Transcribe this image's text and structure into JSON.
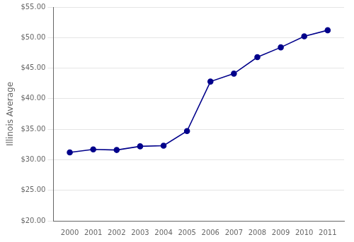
{
  "chart_data": {
    "type": "line",
    "x": [
      2000,
      2001,
      2002,
      2003,
      2004,
      2005,
      2006,
      2007,
      2008,
      2009,
      2010,
      2011
    ],
    "values": [
      31.2,
      31.7,
      31.6,
      32.2,
      32.3,
      34.7,
      42.8,
      44.1,
      46.8,
      48.4,
      50.2,
      51.2
    ],
    "color": "#00008B",
    "marker": "o",
    "ylabel": "Illinois Average",
    "xlim": [
      1999.3,
      2011.7
    ],
    "xticks": [
      2000,
      2001,
      2002,
      2003,
      2004,
      2005,
      2006,
      2007,
      2008,
      2009,
      2010,
      2011
    ],
    "ylim": [
      20.0,
      55.0
    ],
    "yticks": [
      {
        "value": 20.0,
        "label": "$20.00"
      },
      {
        "value": 25.0,
        "label": "$25.00"
      },
      {
        "value": 30.0,
        "label": "$30.00"
      },
      {
        "value": 35.0,
        "label": "$35.00"
      },
      {
        "value": 40.0,
        "label": "$40.00"
      },
      {
        "value": 45.0,
        "label": "$45.00"
      },
      {
        "value": 50.0,
        "label": "$50.00"
      },
      {
        "value": 55.0,
        "label": "$55.00"
      }
    ],
    "grid": "y"
  }
}
